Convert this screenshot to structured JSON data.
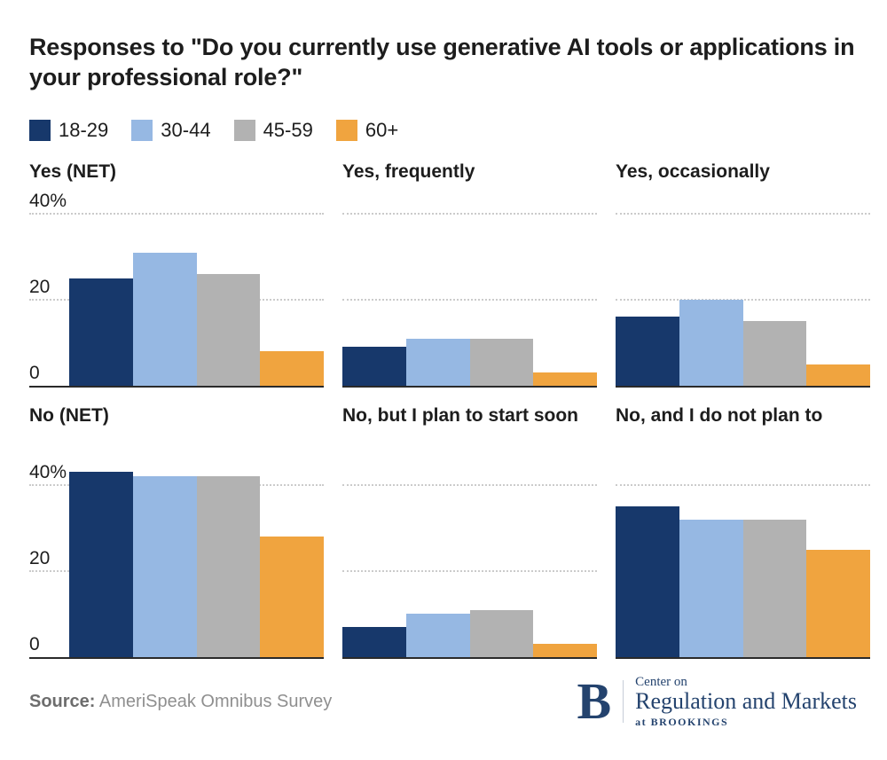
{
  "title": "Responses to \"Do you currently use generative AI tools or applications in your professional role?\"",
  "legend": [
    {
      "label": "18-29",
      "color": "#17386b"
    },
    {
      "label": "30-44",
      "color": "#96b8e3"
    },
    {
      "label": "45-59",
      "color": "#b2b2b2"
    },
    {
      "label": "60+",
      "color": "#f0a43f"
    }
  ],
  "chart_data": {
    "type": "bar",
    "layout": "small multiples, 2 rows x 3 columns, grouped by age",
    "categories": [
      "18-29",
      "30-44",
      "45-59",
      "60+"
    ],
    "series_colors": [
      "#17386b",
      "#96b8e3",
      "#b2b2b2",
      "#f0a43f"
    ],
    "unit": "percent",
    "ylim": [
      0,
      40
    ],
    "yticks": [
      {
        "value": 40,
        "label": "40%"
      },
      {
        "value": 20,
        "label": "20"
      },
      {
        "value": 0,
        "label": "0"
      }
    ],
    "grid": "dotted horizontal gridlines at 20 and 40; y-axis labels shown on left-column panels only; solid dark baseline at 0",
    "panels": [
      {
        "title": "Yes (NET)",
        "values": [
          25,
          31,
          26,
          8
        ],
        "show_axis_labels": true
      },
      {
        "title": "Yes, frequently",
        "values": [
          9,
          11,
          11,
          3
        ],
        "show_axis_labels": false
      },
      {
        "title": "Yes, occasionally",
        "values": [
          16,
          20,
          15,
          5
        ],
        "show_axis_labels": false
      },
      {
        "title": "No (NET)",
        "values": [
          43,
          42,
          42,
          28
        ],
        "show_axis_labels": true
      },
      {
        "title": "No, but I plan to start soon",
        "values": [
          7,
          10,
          11,
          3
        ],
        "show_axis_labels": false
      },
      {
        "title": "No, and I do not plan to",
        "values": [
          35,
          32,
          32,
          25
        ],
        "show_axis_labels": false
      }
    ]
  },
  "footer": {
    "source_label": "Source:",
    "source_text": "AmeriSpeak Omnibus Survey"
  },
  "logo": {
    "letter": "B",
    "line1": "Center on",
    "line2": "Regulation and Markets",
    "line3": "at BROOKINGS",
    "color": "#24436e"
  },
  "colors": {
    "background": "#ffffff",
    "title_text": "#1d1d1d",
    "axis_text": "#1d1d1d",
    "gridline": "#cbcbcb",
    "baseline": "#2a2a2a",
    "source_label": "#6d6d6d",
    "source_text": "#8f8f8f"
  }
}
